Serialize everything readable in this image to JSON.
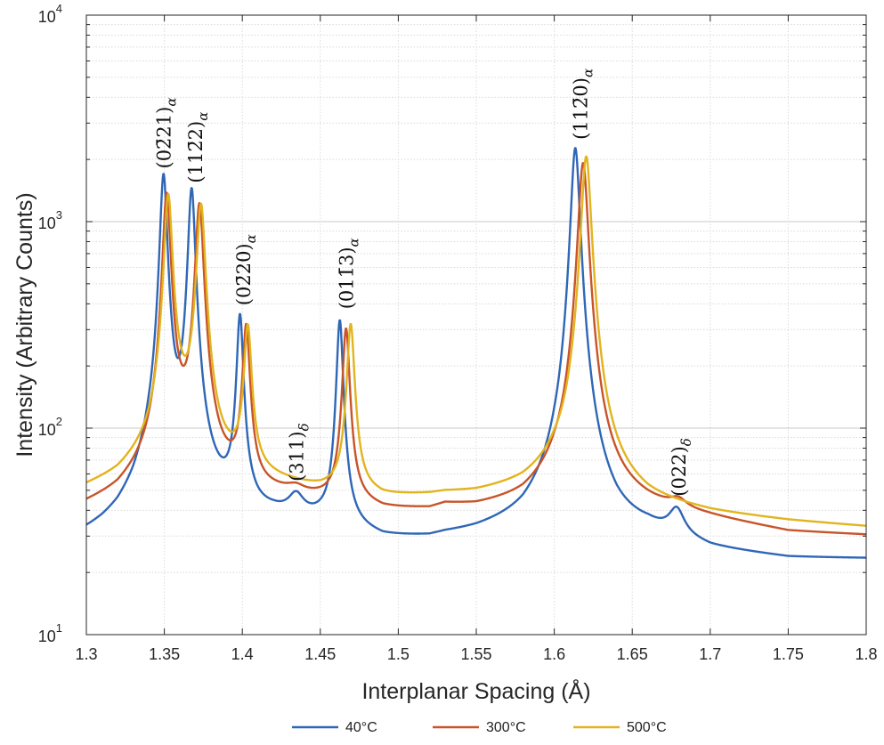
{
  "chart_data": {
    "type": "line",
    "title": "",
    "xlabel": "Interplanar Spacing (Å)",
    "ylabel": "Intensity (Arbitrary Counts)",
    "xlim": [
      1.3,
      1.8
    ],
    "ylim": [
      10,
      10000
    ],
    "yscale": "log",
    "grid": true,
    "minor_grid": true,
    "x_ticks": [
      "1.3",
      "1.35",
      "1.4",
      "1.45",
      "1.5",
      "1.55",
      "1.6",
      "1.65",
      "1.7",
      "1.75",
      "1.8"
    ],
    "y_ticks": [
      {
        "base": "10",
        "exp": "1"
      },
      {
        "base": "10",
        "exp": "2"
      },
      {
        "base": "10",
        "exp": "3"
      },
      {
        "base": "10",
        "exp": "4"
      }
    ],
    "legend_position": "bottom",
    "series": [
      {
        "name": "40°C",
        "color": "#2f67b6",
        "background": [
          [
            1.3,
            29
          ],
          [
            1.31,
            31
          ],
          [
            1.32,
            34
          ],
          [
            1.33,
            40
          ],
          [
            1.34,
            52
          ],
          [
            1.385,
            40
          ],
          [
            1.41,
            36
          ],
          [
            1.42,
            36
          ],
          [
            1.45,
            34
          ],
          [
            1.475,
            30
          ],
          [
            1.49,
            28
          ],
          [
            1.52,
            28
          ],
          [
            1.53,
            29
          ],
          [
            1.55,
            30
          ],
          [
            1.58,
            33
          ],
          [
            1.6,
            40
          ],
          [
            1.64,
            30
          ],
          [
            1.66,
            30
          ],
          [
            1.7,
            25
          ],
          [
            1.75,
            23
          ],
          [
            1.8,
            23
          ]
        ],
        "peaks": [
          {
            "x": 1.3495,
            "height": 1640,
            "width": 0.0022
          },
          {
            "x": 1.3675,
            "height": 1390,
            "width": 0.0022
          },
          {
            "x": 1.3985,
            "height": 310,
            "width": 0.002
          },
          {
            "x": 1.4345,
            "height": 9,
            "width": 0.0055
          },
          {
            "x": 1.4625,
            "height": 300,
            "width": 0.002
          },
          {
            "x": 1.6135,
            "height": 2240,
            "width": 0.0027
          },
          {
            "x": 1.6785,
            "height": 10,
            "width": 0.0055
          }
        ]
      },
      {
        "name": "300°C",
        "color": "#c8542a",
        "background": [
          [
            1.3,
            41
          ],
          [
            1.32,
            46
          ],
          [
            1.34,
            58
          ],
          [
            1.36,
            75
          ],
          [
            1.385,
            55
          ],
          [
            1.41,
            47
          ],
          [
            1.43,
            46
          ],
          [
            1.45,
            44
          ],
          [
            1.47,
            42
          ],
          [
            1.49,
            39
          ],
          [
            1.52,
            39
          ],
          [
            1.53,
            41
          ],
          [
            1.55,
            40
          ],
          [
            1.58,
            42
          ],
          [
            1.6,
            48
          ],
          [
            1.64,
            43
          ],
          [
            1.66,
            40
          ],
          [
            1.7,
            36
          ],
          [
            1.75,
            31
          ],
          [
            1.8,
            30
          ]
        ],
        "peaks": [
          {
            "x": 1.3515,
            "height": 1300,
            "width": 0.0024
          },
          {
            "x": 1.3725,
            "height": 1150,
            "width": 0.0025
          },
          {
            "x": 1.4025,
            "height": 260,
            "width": 0.0022
          },
          {
            "x": 1.4345,
            "height": 3,
            "width": 0.006
          },
          {
            "x": 1.4665,
            "height": 260,
            "width": 0.0022
          },
          {
            "x": 1.6185,
            "height": 1880,
            "width": 0.003
          },
          {
            "x": 1.6795,
            "height": 4,
            "width": 0.006
          }
        ]
      },
      {
        "name": "500°C",
        "color": "#e2b41e",
        "background": [
          [
            1.3,
            50
          ],
          [
            1.32,
            56
          ],
          [
            1.34,
            70
          ],
          [
            1.36,
            95
          ],
          [
            1.385,
            62
          ],
          [
            1.41,
            55
          ],
          [
            1.43,
            52
          ],
          [
            1.45,
            49
          ],
          [
            1.47,
            48
          ],
          [
            1.49,
            45
          ],
          [
            1.52,
            46
          ],
          [
            1.53,
            47
          ],
          [
            1.55,
            47
          ],
          [
            1.58,
            50
          ],
          [
            1.6,
            56
          ],
          [
            1.64,
            47
          ],
          [
            1.66,
            42
          ],
          [
            1.7,
            38
          ],
          [
            1.75,
            35
          ],
          [
            1.8,
            33
          ]
        ],
        "peaks": [
          {
            "x": 1.3525,
            "height": 1260,
            "width": 0.0025
          },
          {
            "x": 1.3735,
            "height": 1130,
            "width": 0.0026
          },
          {
            "x": 1.4035,
            "height": 250,
            "width": 0.0023
          },
          {
            "x": 1.4695,
            "height": 270,
            "width": 0.0023
          },
          {
            "x": 1.6205,
            "height": 2020,
            "width": 0.003
          }
        ]
      }
    ],
    "annotations": [
      {
        "text": "(02̄21)",
        "sub": "α",
        "x": 1.3495,
        "y": 1700
      },
      {
        "text": "(112̄2)",
        "sub": "α",
        "x": 1.3695,
        "y": 1450
      },
      {
        "text": "(02̄20)",
        "sub": "α",
        "x": 1.4005,
        "y": 370
      },
      {
        "text": "(311)",
        "sub": "δ",
        "x": 1.4345,
        "y": 52
      },
      {
        "text": "(011̄3)",
        "sub": "α",
        "x": 1.4665,
        "y": 355
      },
      {
        "text": "(112̄0)",
        "sub": "α",
        "x": 1.6165,
        "y": 2350
      },
      {
        "text": "(022)",
        "sub": "δ",
        "x": 1.6795,
        "y": 44
      }
    ]
  }
}
